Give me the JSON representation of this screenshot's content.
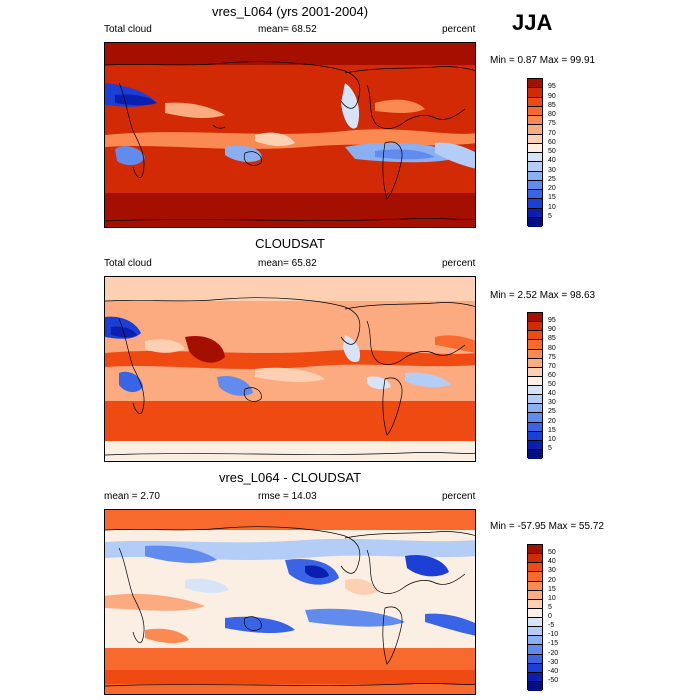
{
  "season": "JJA",
  "panels": [
    {
      "title": "vres_L064 (yrs 2001-2004)",
      "left_label": "Total cloud",
      "center_label": "mean=  68.52",
      "right_label": "percent",
      "minmax": "Min =   0.87 Max =  99.91",
      "levels": [
        "95",
        "90",
        "85",
        "80",
        "75",
        "70",
        "60",
        "50",
        "40",
        "30",
        "25",
        "20",
        "15",
        "10",
        "5"
      ],
      "colors": [
        "#a50f00",
        "#d22a05",
        "#ee4a12",
        "#f7692c",
        "#fb8a52",
        "#fcab81",
        "#fdd0b4",
        "#fbeee2",
        "#d7e4f8",
        "#b3cdf6",
        "#8bb0f2",
        "#618ced",
        "#3a64e6",
        "#1b3fd4",
        "#0a1fb0",
        "#000f82"
      ]
    },
    {
      "title": "CLOUDSAT",
      "left_label": "Total cloud",
      "center_label": "mean=  65.82",
      "right_label": "percent",
      "minmax": "Min =   2.52 Max =  98.63",
      "levels": [
        "95",
        "90",
        "85",
        "80",
        "75",
        "70",
        "60",
        "50",
        "40",
        "30",
        "25",
        "20",
        "15",
        "10",
        "5"
      ],
      "colors": [
        "#a50f00",
        "#d22a05",
        "#ee4a12",
        "#f7692c",
        "#fb8a52",
        "#fcab81",
        "#fdd0b4",
        "#fbeee2",
        "#d7e4f8",
        "#b3cdf6",
        "#8bb0f2",
        "#618ced",
        "#3a64e6",
        "#1b3fd4",
        "#0a1fb0",
        "#000f82"
      ]
    },
    {
      "title": "vres_L064 - CLOUDSAT",
      "left_label": "mean =   2.70",
      "center_label": "rmse =  14.03",
      "right_label": "percent",
      "minmax": "Min = -57.95 Max =  55.72",
      "levels": [
        "50",
        "40",
        "30",
        "20",
        "15",
        "10",
        "5",
        "0",
        "-5",
        "-10",
        "-15",
        "-20",
        "-30",
        "-40",
        "-50"
      ],
      "colors": [
        "#a50f00",
        "#d22a05",
        "#ee4a12",
        "#f7692c",
        "#fb8a52",
        "#fcab81",
        "#fdd0b4",
        "#fbeee2",
        "#d7e4f8",
        "#b3cdf6",
        "#8bb0f2",
        "#618ced",
        "#3a64e6",
        "#1b3fd4",
        "#0a1fb0",
        "#000f82"
      ]
    }
  ]
}
